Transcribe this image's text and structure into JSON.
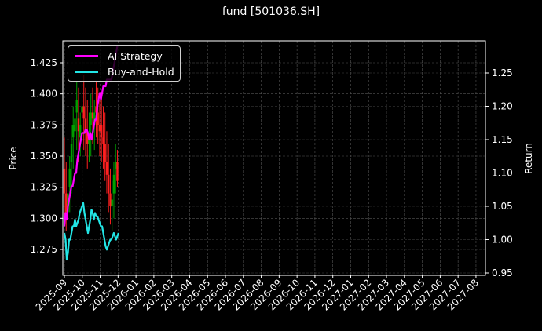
{
  "chart_data": {
    "type": "line",
    "title": "fund [501036.SH]",
    "xlabel": "",
    "ylabel": "Price",
    "ylabel_right": "Return",
    "ylim": [
      1.256,
      1.443
    ],
    "ylim_right": [
      0.946,
      1.297
    ],
    "grid": true,
    "legend_position": "upper left",
    "x_tick_labels": [
      "2025-09",
      "2025-10",
      "2025-11",
      "2025-12",
      "2026-01",
      "2026-02",
      "2026-03",
      "2026-04",
      "2026-05",
      "2026-06",
      "2026-07",
      "2026-08",
      "2026-09",
      "2026-10",
      "2026-11",
      "2026-12",
      "2027-01",
      "2027-02",
      "2027-03",
      "2027-04",
      "2027-05",
      "2027-06",
      "2027-07",
      "2027-08"
    ],
    "y_tick_labels_left": [
      "1.275",
      "1.300",
      "1.325",
      "1.350",
      "1.375",
      "1.400",
      "1.425"
    ],
    "y_tick_values_left": [
      1.275,
      1.3,
      1.325,
      1.35,
      1.375,
      1.4,
      1.425
    ],
    "y_tick_labels_right": [
      "0.95",
      "1.00",
      "1.05",
      "1.10",
      "1.15",
      "1.20",
      "1.25"
    ],
    "y_tick_values_right": [
      0.95,
      1.0,
      1.05,
      1.1,
      1.15,
      1.2,
      1.25
    ],
    "series": [
      {
        "name": "AI Strategy",
        "axis": "right",
        "color": "#ff00ff",
        "x_days": [
          0,
          2,
          4,
          6,
          8,
          10,
          12,
          14,
          16,
          18,
          20,
          22,
          24,
          26,
          28,
          30,
          32,
          34,
          36,
          38,
          40,
          42,
          44,
          46,
          48,
          50,
          52,
          54,
          56,
          58,
          60,
          62,
          64,
          66,
          68,
          70,
          72,
          74,
          76,
          78,
          80,
          82,
          84,
          86,
          88,
          90
        ],
        "values": [
          1.02,
          1.04,
          1.03,
          1.05,
          1.06,
          1.07,
          1.08,
          1.08,
          1.09,
          1.1,
          1.1,
          1.12,
          1.13,
          1.14,
          1.15,
          1.16,
          1.16,
          1.16,
          1.165,
          1.165,
          1.16,
          1.15,
          1.16,
          1.15,
          1.16,
          1.17,
          1.18,
          1.18,
          1.2,
          1.21,
          1.22,
          1.21,
          1.22,
          1.23,
          1.23,
          1.23,
          1.24,
          1.24,
          1.24,
          1.24,
          1.24,
          1.25,
          1.26,
          1.27,
          1.28,
          1.29
        ]
      },
      {
        "name": "Buy-and-Hold",
        "axis": "right",
        "color": "#22e6e6",
        "x_days": [
          0,
          2,
          4,
          6,
          8,
          10,
          12,
          14,
          16,
          18,
          20,
          22,
          24,
          26,
          28,
          30,
          32,
          34,
          36,
          38,
          40,
          42,
          44,
          46,
          48,
          50,
          52,
          54,
          56,
          58,
          60,
          62,
          64,
          66,
          68,
          70,
          72,
          74,
          76,
          78,
          80,
          82,
          84,
          86,
          88,
          90,
          92
        ],
        "values": [
          1.01,
          1.0,
          0.97,
          0.98,
          1.0,
          1.0,
          1.01,
          1.02,
          1.02,
          1.03,
          1.02,
          1.025,
          1.03,
          1.04,
          1.045,
          1.05,
          1.055,
          1.04,
          1.03,
          1.02,
          1.01,
          1.02,
          1.03,
          1.045,
          1.04,
          1.03,
          1.04,
          1.035,
          1.035,
          1.03,
          1.025,
          1.02,
          1.02,
          1.01,
          1.0,
          0.99,
          0.985,
          0.99,
          0.995,
          1.0,
          1.0,
          1.005,
          1.01,
          1.005,
          1.0,
          1.005,
          1.01
        ]
      },
      {
        "name": "Price candles",
        "axis": "left",
        "type": "candlestick",
        "up_color": "#00a000",
        "down_color": "#ff2020",
        "x_days": [
          0,
          3,
          6,
          9,
          12,
          15,
          18,
          21,
          24,
          27,
          30,
          33,
          36,
          39,
          42,
          45,
          48,
          51,
          54,
          57,
          60,
          63,
          66,
          69,
          72,
          75,
          78,
          81,
          84,
          87,
          90
        ],
        "high": [
          1.365,
          1.345,
          1.33,
          1.35,
          1.375,
          1.39,
          1.395,
          1.41,
          1.405,
          1.385,
          1.41,
          1.415,
          1.405,
          1.395,
          1.385,
          1.4,
          1.405,
          1.395,
          1.41,
          1.405,
          1.395,
          1.4,
          1.39,
          1.385,
          1.37,
          1.36,
          1.34,
          1.33,
          1.345,
          1.36,
          1.355
        ],
        "low": [
          1.3,
          1.29,
          1.285,
          1.305,
          1.32,
          1.34,
          1.35,
          1.355,
          1.345,
          1.35,
          1.36,
          1.355,
          1.35,
          1.34,
          1.345,
          1.35,
          1.36,
          1.355,
          1.365,
          1.36,
          1.35,
          1.345,
          1.34,
          1.33,
          1.32,
          1.305,
          1.295,
          1.29,
          1.3,
          1.32,
          1.325
        ],
        "open": [
          1.34,
          1.32,
          1.305,
          1.325,
          1.345,
          1.365,
          1.37,
          1.385,
          1.38,
          1.365,
          1.385,
          1.39,
          1.38,
          1.37,
          1.36,
          1.375,
          1.385,
          1.375,
          1.39,
          1.385,
          1.375,
          1.375,
          1.365,
          1.36,
          1.345,
          1.335,
          1.32,
          1.31,
          1.32,
          1.34,
          1.345
        ],
        "close": [
          1.32,
          1.305,
          1.32,
          1.34,
          1.36,
          1.375,
          1.38,
          1.395,
          1.37,
          1.375,
          1.39,
          1.38,
          1.37,
          1.36,
          1.365,
          1.385,
          1.38,
          1.385,
          1.385,
          1.375,
          1.37,
          1.365,
          1.36,
          1.345,
          1.335,
          1.32,
          1.31,
          1.315,
          1.335,
          1.345,
          1.33
        ]
      }
    ]
  },
  "title": "fund [501036.SH]",
  "legend": {
    "items": [
      {
        "label": "AI Strategy",
        "color": "#ff00ff"
      },
      {
        "label": "Buy-and-Hold",
        "color": "#22e6e6"
      }
    ]
  },
  "axes": {
    "left_label": "Price",
    "right_label": "Return"
  }
}
